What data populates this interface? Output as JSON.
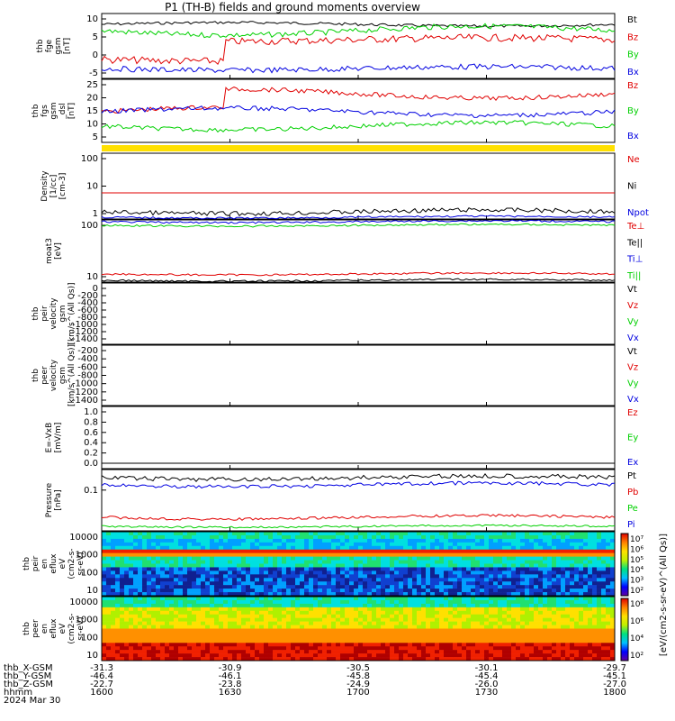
{
  "title": "P1 (TH-B) fields and ground moments overview",
  "colors": {
    "black": "#000000",
    "red": "#e00000",
    "green": "#00d000",
    "blue": "#0000e0",
    "yellow": "#ffe000"
  },
  "x_axis": {
    "ticks": [
      "1600",
      "1630",
      "1700",
      "1730",
      "1800"
    ],
    "rows": [
      {
        "label": "thb_X-GSM",
        "values": [
          "-31.3",
          "-30.9",
          "-30.5",
          "-30.1",
          "-29.7"
        ]
      },
      {
        "label": "thb_Y-GSM",
        "values": [
          "-46.4",
          "-46.1",
          "-45.8",
          "-45.4",
          "-45.1"
        ]
      },
      {
        "label": "thb_Z-GSM",
        "values": [
          "-22.7",
          "-23.8",
          "-24.9",
          "-26.0",
          "-27.0"
        ]
      },
      {
        "label": "hhmm",
        "values": [
          "1600",
          "1630",
          "1700",
          "1730",
          "1800"
        ]
      }
    ],
    "date": "2024 Mar 30"
  },
  "chart_data": [
    {
      "type": "line",
      "ylabel": [
        "thb",
        "fge",
        "gsm",
        "[nT]"
      ],
      "ylim": [
        -6,
        11
      ],
      "yticks": [
        "10",
        "5",
        "0",
        "-5"
      ],
      "series": [
        {
          "name": "Bt",
          "color": "black"
        },
        {
          "name": "Bz",
          "color": "red"
        },
        {
          "name": "By",
          "color": "green"
        },
        {
          "name": "Bx",
          "color": "blue"
        }
      ]
    },
    {
      "type": "line",
      "ylabel": [
        "thb",
        "fgs",
        "gsm",
        "_dsl",
        "[nT]"
      ],
      "ylim": [
        2,
        27
      ],
      "yticks": [
        "25",
        "20",
        "15",
        "10",
        "5"
      ],
      "series": [
        {
          "name": "Bz",
          "color": "red"
        },
        {
          "name": "By",
          "color": "green"
        },
        {
          "name": "Bx",
          "color": "blue"
        }
      ]
    },
    {
      "type": "bar",
      "ylabel": [],
      "color": "yellow"
    },
    {
      "type": "line",
      "log": true,
      "ylabel": [
        "Density",
        "[1/cc]",
        "[cm-3]"
      ],
      "yticks": [
        "100",
        "10",
        "1"
      ],
      "series": [
        {
          "name": "Ne",
          "color": "red"
        },
        {
          "name": "Ni",
          "color": "black"
        },
        {
          "name": "Npot",
          "color": "blue"
        }
      ]
    },
    {
      "type": "line",
      "log": true,
      "ylabel": [
        "moat3",
        "[eV]"
      ],
      "yticks": [
        "100",
        "10"
      ],
      "series": [
        {
          "name": "Te⊥",
          "color": "red"
        },
        {
          "name": "Te||",
          "color": "black"
        },
        {
          "name": "Ti⊥",
          "color": "blue"
        },
        {
          "name": "Ti||",
          "color": "green"
        }
      ]
    },
    {
      "type": "line",
      "ylabel": [
        "thb",
        "peir",
        "velocity",
        "gsm",
        "[km/s^(All Qs)]"
      ],
      "yticks": [
        "0",
        "-200",
        "-400",
        "-600",
        "-800",
        "-1000",
        "-1200",
        "-1400"
      ],
      "series": [
        {
          "name": "Vt",
          "color": "black"
        },
        {
          "name": "Vz",
          "color": "red"
        },
        {
          "name": "Vy",
          "color": "green"
        },
        {
          "name": "Vx",
          "color": "blue"
        }
      ]
    },
    {
      "type": "line",
      "ylabel": [
        "thb",
        "peer",
        "velocity",
        "gsm",
        "[km/s^(All Qs)]"
      ],
      "yticks": [
        "-200",
        "-400",
        "-600",
        "-800",
        "-1000",
        "-1200",
        "-1400"
      ],
      "series": [
        {
          "name": "Vt",
          "color": "black"
        },
        {
          "name": "Vz",
          "color": "red"
        },
        {
          "name": "Vy",
          "color": "green"
        },
        {
          "name": "Vx",
          "color": "blue"
        }
      ]
    },
    {
      "type": "line",
      "ylabel": [
        "E=-VxB",
        "[mV/m]"
      ],
      "yticks": [
        "1.0",
        "0.8",
        "0.6",
        "0.4",
        "0.2",
        "0.0"
      ],
      "series": [
        {
          "name": "Ez",
          "color": "red"
        },
        {
          "name": "Ey",
          "color": "green"
        },
        {
          "name": "Ex",
          "color": "blue"
        }
      ]
    },
    {
      "type": "line",
      "log": true,
      "ylabel": [
        "Pressure",
        "[nPa]"
      ],
      "yticks": [
        "0.1"
      ],
      "series": [
        {
          "name": "Pt",
          "color": "black"
        },
        {
          "name": "Pb",
          "color": "red"
        },
        {
          "name": "Pe",
          "color": "green"
        },
        {
          "name": "Pi",
          "color": "blue"
        }
      ]
    },
    {
      "type": "heatmap",
      "ylabel": [
        "thb",
        "peir",
        "en",
        "eflux",
        "eV",
        "(cm2-s-",
        "sr-eV)"
      ],
      "yticks": [
        "10000",
        "1000",
        "100",
        "10"
      ],
      "colorbar": {
        "ticks": [
          "10⁷",
          "10⁶",
          "10⁵",
          "10⁴",
          "10³",
          "10²"
        ]
      }
    },
    {
      "type": "heatmap",
      "ylabel": [
        "thb",
        "peer",
        "en",
        "eflux",
        "eV",
        "(cm2-s-",
        "sr-eV)"
      ],
      "yticks": [
        "10000",
        "1000",
        "100",
        "10"
      ],
      "colorbar": {
        "ticks": [
          "10⁸",
          "10⁶",
          "10⁴",
          "10²"
        ]
      }
    }
  ],
  "colorbar_label": "[eV/(cm2-s-sr-eV)^(All Qs)]"
}
